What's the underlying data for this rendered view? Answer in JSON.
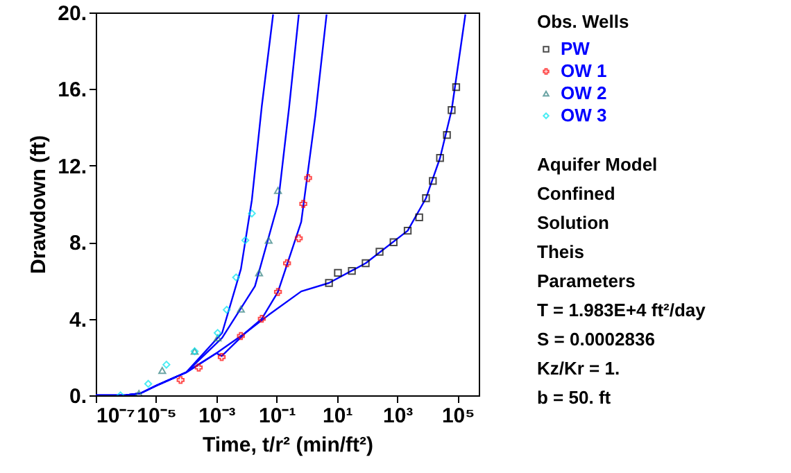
{
  "chart_data": {
    "type": "scatter",
    "xlabel": "Time, t/r² (min/ft²)",
    "ylabel": "Drawdown (ft)",
    "legend_title": "Obs. Wells",
    "legend": "right",
    "log": "x",
    "grid": false,
    "xlim": [
      1e-07,
      500000
    ],
    "xticks": [
      {
        "value": 1e-07,
        "label": "10⁻⁷"
      },
      {
        "value": 1e-05,
        "label": "10⁻⁵"
      },
      {
        "value": 0.001,
        "label": "10⁻³"
      },
      {
        "value": 0.1,
        "label": "10⁻¹"
      },
      {
        "value": 10,
        "label": "10¹"
      },
      {
        "value": 1000,
        "label": "10³"
      },
      {
        "value": 100000,
        "label": "10⁵"
      }
    ],
    "ylim": [
      0,
      20
    ],
    "yticks": [
      {
        "value": 0,
        "label": "0."
      },
      {
        "value": 4,
        "label": "4."
      },
      {
        "value": 8,
        "label": "8."
      },
      {
        "value": 12,
        "label": "12."
      },
      {
        "value": 16,
        "label": "16."
      },
      {
        "value": 20,
        "label": "20."
      }
    ],
    "series": [
      {
        "name": "PW",
        "color": "#000000",
        "marker": "square",
        "x": [
          5.4,
          10.7,
          31,
          89,
          257,
          750,
          2200,
          5300,
          8900,
          15000,
          26000,
          44000,
          63000,
          89000
        ],
        "values": [
          5.87,
          6.4,
          6.5,
          6.9,
          7.5,
          8.0,
          8.6,
          9.3,
          10.3,
          11.2,
          12.4,
          13.6,
          14.9,
          16.1
        ]
      },
      {
        "name": "OW 1",
        "color": "#ff0000",
        "marker": "cross",
        "x": [
          6.5e-05,
          0.00026,
          0.0015,
          0.0065,
          0.032,
          0.11,
          0.22,
          0.54,
          0.76,
          1.1
        ],
        "values": [
          0.8,
          1.45,
          2.0,
          3.1,
          4.0,
          5.4,
          6.9,
          8.2,
          10.0,
          11.35
        ]
      },
      {
        "name": "OW 2",
        "color": "#2f7f7f",
        "marker": "triangle",
        "x": [
          2.7e-06,
          1.6e-05,
          0.00019,
          0.0011,
          0.0065,
          0.026,
          0.054,
          0.11
        ],
        "values": [
          0.1,
          1.3,
          2.3,
          3.0,
          4.5,
          6.4,
          8.1,
          10.7
        ]
      },
      {
        "name": "OW 3",
        "color": "#00e5ee",
        "marker": "diamond",
        "x": [
          6.6e-07,
          5.5e-06,
          2.2e-05,
          0.00019,
          0.0011,
          0.0022,
          0.0045,
          0.0091,
          0.015
        ],
        "values": [
          0.0,
          0.6,
          1.6,
          2.3,
          3.26,
          4.47,
          6.16,
          8.1,
          9.5
        ]
      },
      {
        "type": "line",
        "color": "#0000ff",
        "x": [
          1e-07,
          1e-06,
          3e-06,
          1e-05,
          0.0001,
          0.001,
          0.0015,
          0.0091,
          0.054,
          0.65,
          5.4,
          89,
          2200,
          8900,
          26000,
          63000,
          180000
        ],
        "values": [
          0.0,
          0.01,
          0.1,
          0.5,
          1.2,
          2.2,
          2.05,
          3.26,
          4.2,
          5.43,
          5.87,
          6.9,
          8.6,
          10.3,
          12.4,
          14.9,
          19.9
        ]
      },
      {
        "type": "line",
        "color": "#0000ff",
        "x": [
          1e-07,
          1e-06,
          3e-06,
          1e-05,
          0.0001,
          0.001,
          0.0091,
          0.032,
          0.11,
          0.65,
          1.9,
          4.5
        ],
        "values": [
          0.0,
          0.01,
          0.1,
          0.5,
          1.2,
          2.2,
          3.26,
          4.0,
          5.4,
          9.06,
          14.6,
          19.9
        ]
      },
      {
        "type": "line",
        "color": "#0000ff",
        "x": [
          1e-07,
          1e-06,
          3e-06,
          1e-05,
          0.0001,
          0.00155,
          0.019,
          0.11,
          0.26,
          0.54
        ],
        "values": [
          0.0,
          0.01,
          0.1,
          0.5,
          1.2,
          3.0,
          5.7,
          10.0,
          15.1,
          19.9
        ]
      },
      {
        "type": "line",
        "color": "#0000ff",
        "x": [
          1e-07,
          1e-06,
          3e-06,
          1e-05,
          0.0001,
          0.00155,
          0.0065,
          0.015,
          0.032,
          0.076
        ],
        "values": [
          0.0,
          0.01,
          0.1,
          0.5,
          1.2,
          3.26,
          6.6,
          10.2,
          15.1,
          19.9
        ]
      }
    ],
    "annotations": [
      "Aquifer Model",
      "Confined",
      "Solution",
      "Theis",
      "Parameters",
      "T = 1.983E+4 ft²/day",
      "S = 0.0002836",
      "Kz/Kr = 1.",
      "b = 50. ft"
    ]
  }
}
